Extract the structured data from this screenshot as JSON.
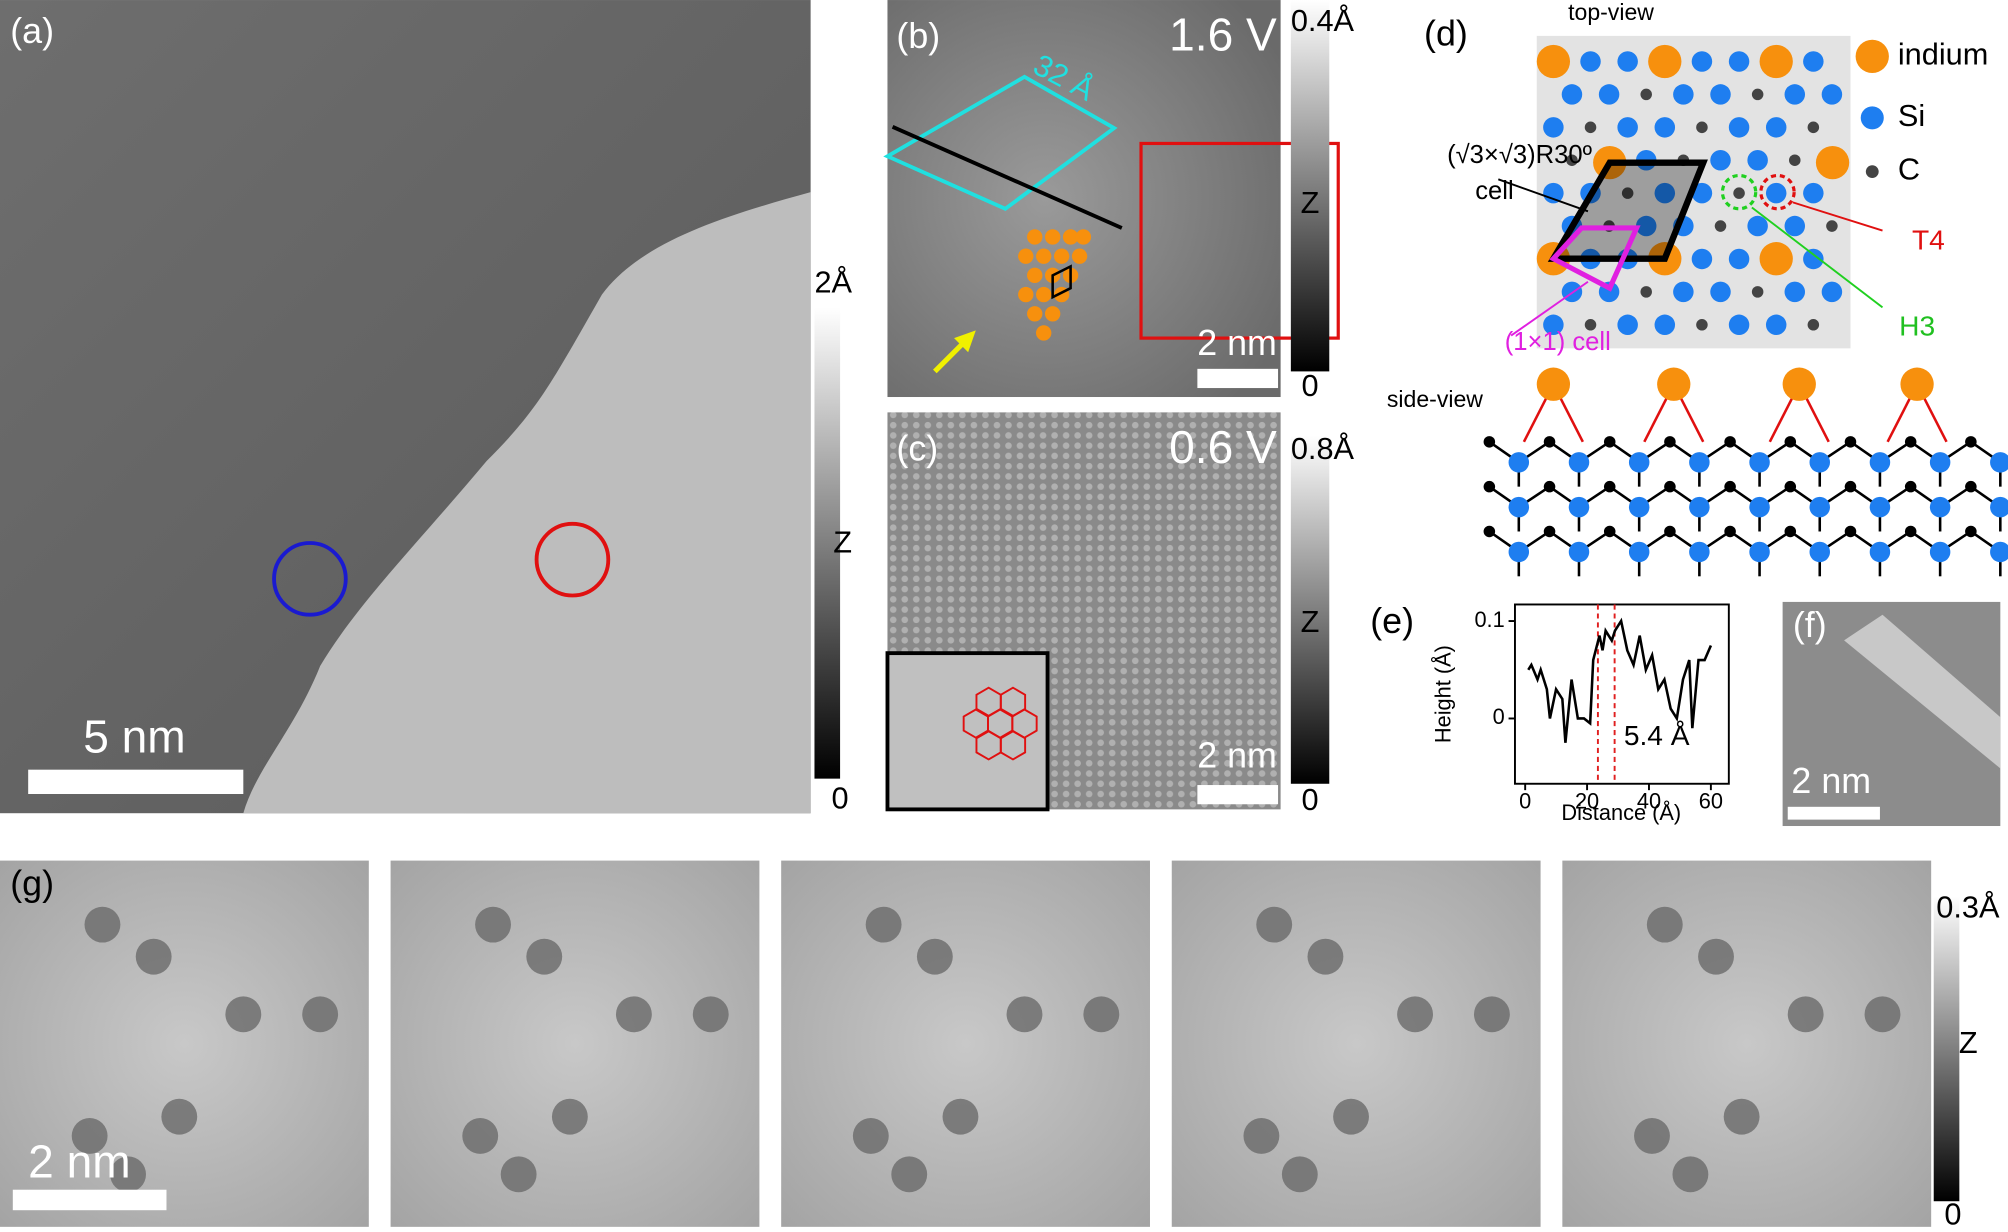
{
  "panels": {
    "a": {
      "label": "(a)",
      "scalebar": "5 nm",
      "colorbar": {
        "max": "2Å",
        "title": "Z",
        "min": "0"
      }
    },
    "b": {
      "label": "(b)",
      "bias": "1.6 V",
      "period": "32 Å",
      "scalebar": "2 nm",
      "colorbar": {
        "max": "0.4Å",
        "title": "Z",
        "min": "0"
      }
    },
    "c": {
      "label": "(c)",
      "bias": "0.6 V",
      "scalebar": "2 nm",
      "colorbar": {
        "max": "0.8Å",
        "title": "Z",
        "min": "0"
      }
    },
    "d": {
      "label": "(d)",
      "top_view": "top-view",
      "side_view": "side-view",
      "legend": [
        "indium",
        "Si",
        "C"
      ],
      "cell_sqrt3": "(√3×√3)R30º",
      "cell_word": "cell",
      "cell_1x1": "(1×1) cell",
      "t4": "T4",
      "h3": "H3"
    },
    "e": {
      "label": "(e)",
      "type": "line",
      "y_label": "Height (Å)",
      "x_label": "Distance (Å)",
      "annotation": "5.4 Å",
      "x": [
        1,
        2,
        4,
        5,
        7,
        8,
        10,
        12,
        13,
        15,
        17,
        19,
        21,
        22,
        24,
        25,
        26,
        28,
        29,
        31,
        33,
        35,
        37,
        39,
        41,
        43,
        45,
        47,
        49,
        51,
        53,
        54,
        56,
        58,
        60
      ],
      "values": [
        0.05,
        0.055,
        0.04,
        0.05,
        0.03,
        0.0,
        0.03,
        0.02,
        -0.025,
        0.04,
        0.0,
        0.0,
        -0.005,
        0.06,
        0.085,
        0.07,
        0.09,
        0.08,
        0.09,
        0.1,
        0.07,
        0.055,
        0.085,
        0.05,
        0.065,
        0.03,
        0.04,
        0.01,
        0.0,
        0.04,
        0.06,
        -0.01,
        0.06,
        0.06,
        0.075
      ],
      "color": "#000000",
      "dashed_lines": [
        23.5,
        28.9
      ],
      "dashed_color": "#e02020",
      "xlim": [
        -3.3,
        65.8
      ],
      "ylim": [
        -0.067,
        0.117
      ],
      "xticks": [
        0,
        20,
        40,
        60
      ],
      "yticks": [
        0,
        0.1
      ]
    },
    "f": {
      "label": "(f)",
      "scalebar": "2 nm"
    },
    "g": {
      "label": "(g)",
      "scalebar": "2 nm",
      "colorbar": {
        "max": "0.3Å",
        "title": "Z",
        "min": "0"
      }
    }
  }
}
